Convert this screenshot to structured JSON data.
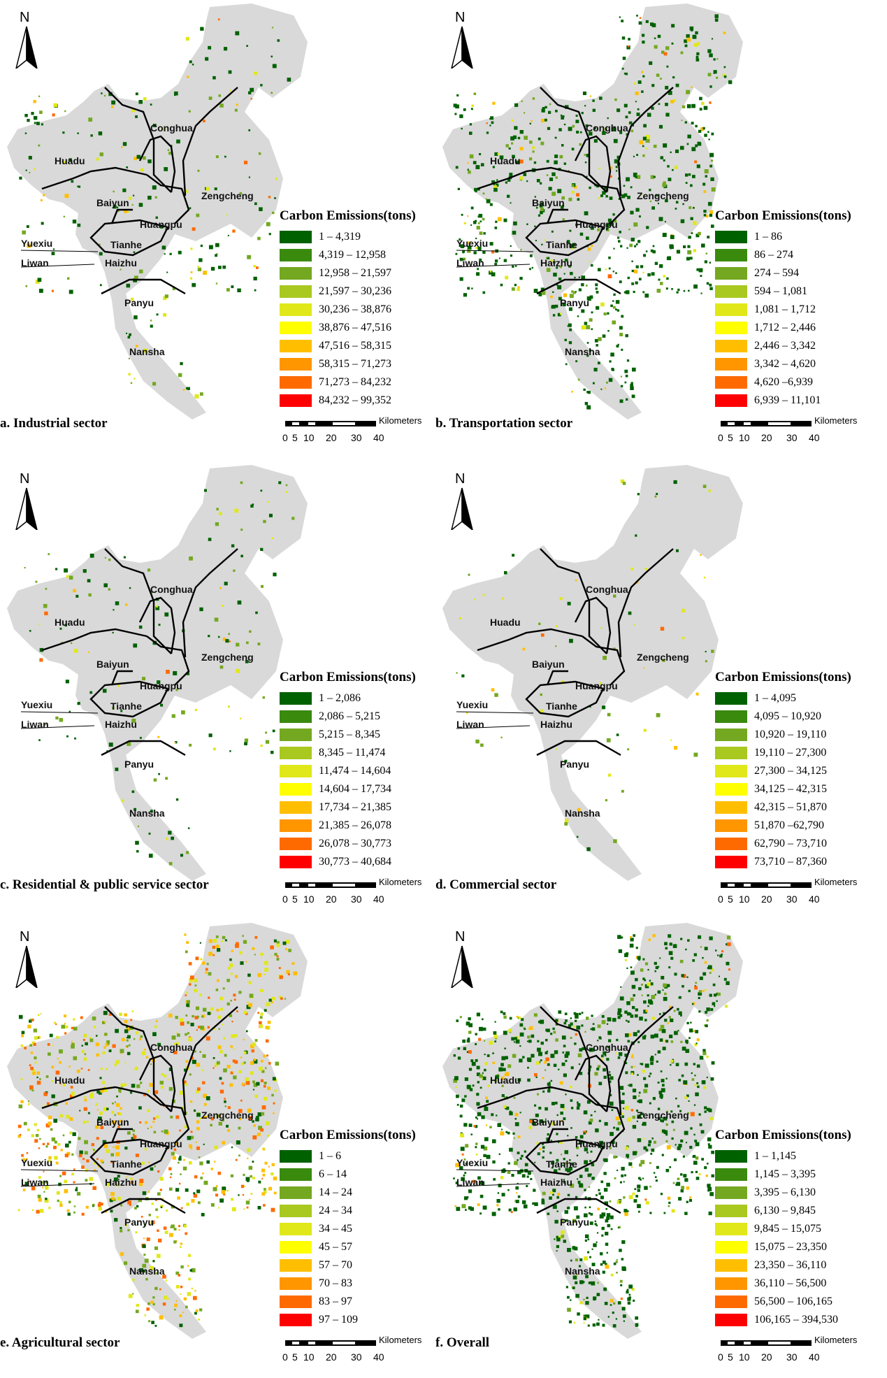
{
  "north_label": "N",
  "legend_title": "Carbon Emissions(tons)",
  "scale": {
    "unit_label": "Kilometers",
    "ticks": [
      "0",
      "5",
      "10",
      "20",
      "30",
      "40"
    ]
  },
  "districts": {
    "conghua": "Conghua",
    "huadu": "Huadu",
    "baiyun": "Baiyun",
    "zengcheng": "Zengcheng",
    "huangpu": "Huangpu",
    "yuexiu": "Yuexiu",
    "tianhe": "Tianhe",
    "liwan": "Liwan",
    "haizhu": "Haizhu",
    "panyu": "Panyu",
    "nansha": "Nansha"
  },
  "colors": [
    "#006100",
    "#3a8a0e",
    "#74a820",
    "#a9c820",
    "#e0e81a",
    "#ffff00",
    "#ffbf00",
    "#ff9600",
    "#ff6a00",
    "#ff0000"
  ],
  "panels": [
    {
      "caption": "a. Industrial sector",
      "ranges": [
        "1 – 4,319",
        "4,319 – 12,958",
        "12,958 – 21,597",
        "21,597 – 30,236",
        "30,236 – 38,876",
        "38,876 – 47,516",
        "47,516 – 58,315",
        "58,315 – 71,273",
        "71,273 – 84,232",
        "84,232 – 99,352"
      ]
    },
    {
      "caption": "b. Transportation sector",
      "ranges": [
        "1 – 86",
        "86 – 274",
        "274 – 594",
        "594 – 1,081",
        "1,081 – 1,712",
        "1,712 – 2,446",
        "2,446 – 3,342",
        "3,342 – 4,620",
        "4,620 –6,939",
        "6,939 – 11,101"
      ]
    },
    {
      "caption": "c. Residential & public service sector",
      "ranges": [
        "1 – 2,086",
        "2,086 – 5,215",
        "5,215 – 8,345",
        "8,345 – 11,474",
        "11,474 – 14,604",
        "14,604 – 17,734",
        "17,734 – 21,385",
        "21,385 – 26,078",
        "26,078 – 30,773",
        "30,773 – 40,684"
      ]
    },
    {
      "caption": "d. Commercial sector",
      "ranges": [
        "1 – 4,095",
        "4,095 – 10,920",
        "10,920 – 19,110",
        "19,110 – 27,300",
        "27,300 – 34,125",
        "34,125 – 42,315",
        "42,315 – 51,870",
        "51,870 –62,790",
        "62,790 – 73,710",
        "73,710 – 87,360"
      ]
    },
    {
      "caption": "e. Agricultural sector",
      "ranges": [
        "1 – 6",
        "6 – 14",
        "14 – 24",
        "24 – 34",
        "34 – 45",
        "45 – 57",
        "57 – 70",
        "70 – 83",
        "83 – 97",
        "97 – 109"
      ]
    },
    {
      "caption": "f. Overall",
      "ranges": [
        "1 – 1,145",
        "1,145 – 3,395",
        "3,395 – 6,130",
        "6,130 – 9,845",
        "9,845 – 15,075",
        "15,075 – 23,350",
        "23,350 – 36,110",
        "36,110 – 56,500",
        "56,500 – 106,165",
        "106,165 – 394,530"
      ]
    }
  ]
}
